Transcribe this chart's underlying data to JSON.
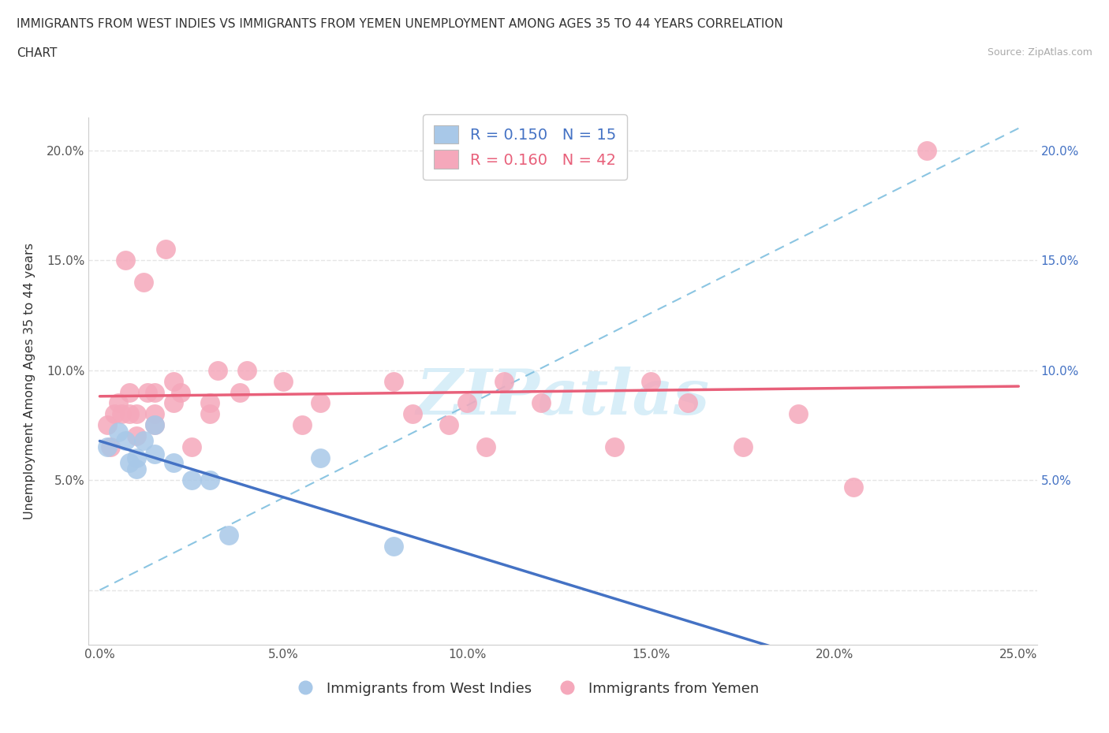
{
  "title_line1": "IMMIGRANTS FROM WEST INDIES VS IMMIGRANTS FROM YEMEN UNEMPLOYMENT AMONG AGES 35 TO 44 YEARS CORRELATION",
  "title_line2": "CHART",
  "source": "Source: ZipAtlas.com",
  "ylabel": "Unemployment Among Ages 35 to 44 years",
  "xlim": [
    -0.003,
    0.255
  ],
  "ylim": [
    -0.025,
    0.215
  ],
  "yticks": [
    0.0,
    0.05,
    0.1,
    0.15,
    0.2
  ],
  "xticks": [
    0.0,
    0.05,
    0.1,
    0.15,
    0.2,
    0.25
  ],
  "ytick_labels_left": [
    "",
    "5.0%",
    "10.0%",
    "15.0%",
    "20.0%"
  ],
  "ytick_labels_right": [
    "",
    "5.0%",
    "10.0%",
    "15.0%",
    "20.0%"
  ],
  "xtick_labels": [
    "0.0%",
    "5.0%",
    "10.0%",
    "15.0%",
    "20.0%",
    "25.0%"
  ],
  "west_indies_color": "#a8c8e8",
  "yemen_color": "#f5a8bb",
  "west_indies_R": 0.15,
  "west_indies_N": 15,
  "yemen_R": 0.16,
  "yemen_N": 42,
  "west_indies_line_color": "#4472c4",
  "yemen_line_color": "#e8607a",
  "dashed_line_color": "#7fbfdf",
  "grid_color": "#e5e5e5",
  "watermark_text": "ZIPatlas",
  "watermark_color": "#d8eef8",
  "west_indies_x": [
    0.002,
    0.005,
    0.007,
    0.008,
    0.01,
    0.01,
    0.012,
    0.015,
    0.015,
    0.02,
    0.025,
    0.03,
    0.035,
    0.06,
    0.08
  ],
  "west_indies_y": [
    0.065,
    0.072,
    0.068,
    0.058,
    0.06,
    0.055,
    0.068,
    0.075,
    0.062,
    0.058,
    0.05,
    0.05,
    0.025,
    0.06,
    0.02
  ],
  "yemen_x": [
    0.002,
    0.003,
    0.004,
    0.005,
    0.006,
    0.007,
    0.008,
    0.008,
    0.01,
    0.01,
    0.012,
    0.013,
    0.015,
    0.015,
    0.015,
    0.018,
    0.02,
    0.02,
    0.022,
    0.025,
    0.03,
    0.03,
    0.032,
    0.038,
    0.04,
    0.05,
    0.055,
    0.06,
    0.08,
    0.085,
    0.095,
    0.1,
    0.105,
    0.11,
    0.12,
    0.14,
    0.15,
    0.16,
    0.175,
    0.19,
    0.205,
    0.225
  ],
  "yemen_y": [
    0.075,
    0.065,
    0.08,
    0.085,
    0.08,
    0.15,
    0.09,
    0.08,
    0.07,
    0.08,
    0.14,
    0.09,
    0.08,
    0.09,
    0.075,
    0.155,
    0.085,
    0.095,
    0.09,
    0.065,
    0.08,
    0.085,
    0.1,
    0.09,
    0.1,
    0.095,
    0.075,
    0.085,
    0.095,
    0.08,
    0.075,
    0.085,
    0.065,
    0.095,
    0.085,
    0.065,
    0.095,
    0.085,
    0.065,
    0.08,
    0.047,
    0.2
  ],
  "background_color": "#ffffff"
}
